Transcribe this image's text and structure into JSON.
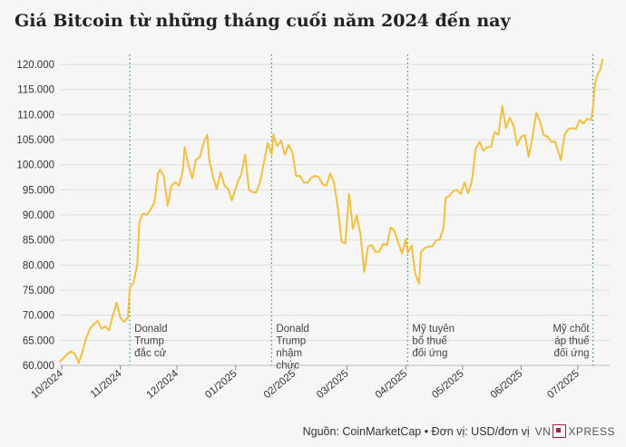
{
  "title": "Giá Bitcoin từ những tháng cuối năm 2024 đến nay",
  "source": "Nguồn: CoinMarketCap • Đơn vị: USD/đơn vị",
  "logo": {
    "left": "VN",
    "right": "XPRESS"
  },
  "colors": {
    "line": "#f2bf3f",
    "event": "#3f9a57",
    "grid": "#dcdcdc",
    "text": "#333333"
  },
  "chart_data": {
    "type": "line",
    "title": "Giá Bitcoin từ những tháng cuối năm 2024 đến nay",
    "ylim": [
      60000,
      122000
    ],
    "yticks": [
      {
        "v": 60000,
        "label": "60.000"
      },
      {
        "v": 65000,
        "label": "65.000"
      },
      {
        "v": 70000,
        "label": "70.000"
      },
      {
        "v": 75000,
        "label": "75.000"
      },
      {
        "v": 80000,
        "label": "80.000"
      },
      {
        "v": 85000,
        "label": "85.000"
      },
      {
        "v": 90000,
        "label": "90.000"
      },
      {
        "v": 95000,
        "label": "95.000"
      },
      {
        "v": 100000,
        "label": "100.000"
      },
      {
        "v": 105000,
        "label": "105.000"
      },
      {
        "v": 110000,
        "label": "110.000"
      },
      {
        "v": 115000,
        "label": "115.000"
      },
      {
        "v": 120000,
        "label": "120.000"
      }
    ],
    "xticks": [
      {
        "date": "2024-10-01",
        "label": "10/2024"
      },
      {
        "date": "2024-11-01",
        "label": "11/2024"
      },
      {
        "date": "2024-12-01",
        "label": "12/2024"
      },
      {
        "date": "2025-01-01",
        "label": "01/2025"
      },
      {
        "date": "2025-02-01",
        "label": "02/2025"
      },
      {
        "date": "2025-03-01",
        "label": "03/2025"
      },
      {
        "date": "2025-04-01",
        "label": "04/2025"
      },
      {
        "date": "2025-05-01",
        "label": "05/2025"
      },
      {
        "date": "2025-06-01",
        "label": "06/2025"
      },
      {
        "date": "2025-07-01",
        "label": "07/2025"
      }
    ],
    "events": [
      {
        "date": "2024-11-06",
        "lines": [
          "Donald",
          "Trump",
          "đắc cử"
        ]
      },
      {
        "date": "2025-01-20",
        "lines": [
          "Donald",
          "Trump",
          "nhậm",
          "chức"
        ]
      },
      {
        "date": "2025-04-02",
        "lines": [
          "Mỹ tuyên",
          "bố thuế",
          "đối ứng"
        ]
      },
      {
        "date": "2025-07-09",
        "lines": [
          "Mỹ chốt",
          "áp thuế",
          "đối ứng"
        ]
      }
    ],
    "series": [
      {
        "points": [
          [
            "2024-09-30",
            60800
          ],
          [
            "2024-10-02",
            61500
          ],
          [
            "2024-10-04",
            62300
          ],
          [
            "2024-10-06",
            62800
          ],
          [
            "2024-10-08",
            62200
          ],
          [
            "2024-10-10",
            60500
          ],
          [
            "2024-10-12",
            62800
          ],
          [
            "2024-10-14",
            65500
          ],
          [
            "2024-10-16",
            67400
          ],
          [
            "2024-10-18",
            68200
          ],
          [
            "2024-10-20",
            68900
          ],
          [
            "2024-10-22",
            67300
          ],
          [
            "2024-10-24",
            67800
          ],
          [
            "2024-10-26",
            67000
          ],
          [
            "2024-10-28",
            69900
          ],
          [
            "2024-10-30",
            72500
          ],
          [
            "2024-11-01",
            69500
          ],
          [
            "2024-11-03",
            68700
          ],
          [
            "2024-11-05",
            69500
          ],
          [
            "2024-11-06",
            75500
          ],
          [
            "2024-11-08",
            76500
          ],
          [
            "2024-11-10",
            80300
          ],
          [
            "2024-11-11",
            88500
          ],
          [
            "2024-11-13",
            90300
          ],
          [
            "2024-11-15",
            90000
          ],
          [
            "2024-11-17",
            91000
          ],
          [
            "2024-11-19",
            92500
          ],
          [
            "2024-11-21",
            98300
          ],
          [
            "2024-11-22",
            99000
          ],
          [
            "2024-11-24",
            97700
          ],
          [
            "2024-11-26",
            91800
          ],
          [
            "2024-11-28",
            95800
          ],
          [
            "2024-11-30",
            96500
          ],
          [
            "2024-12-02",
            95800
          ],
          [
            "2024-12-04",
            98700
          ],
          [
            "2024-12-05",
            103500
          ],
          [
            "2024-12-07",
            99900
          ],
          [
            "2024-12-09",
            97300
          ],
          [
            "2024-12-11",
            101000
          ],
          [
            "2024-12-13",
            101500
          ],
          [
            "2024-12-15",
            104300
          ],
          [
            "2024-12-17",
            106000
          ],
          [
            "2024-12-18",
            101000
          ],
          [
            "2024-12-20",
            97500
          ],
          [
            "2024-12-22",
            95200
          ],
          [
            "2024-12-24",
            98500
          ],
          [
            "2024-12-26",
            95900
          ],
          [
            "2024-12-28",
            95200
          ],
          [
            "2024-12-30",
            92900
          ],
          [
            "2025-01-02",
            96500
          ],
          [
            "2025-01-04",
            98100
          ],
          [
            "2025-01-06",
            102000
          ],
          [
            "2025-01-08",
            95000
          ],
          [
            "2025-01-10",
            94500
          ],
          [
            "2025-01-12",
            94500
          ],
          [
            "2025-01-14",
            96800
          ],
          [
            "2025-01-16",
            100500
          ],
          [
            "2025-01-18",
            104400
          ],
          [
            "2025-01-20",
            102000
          ],
          [
            "2025-01-21",
            106000
          ],
          [
            "2025-01-23",
            103700
          ],
          [
            "2025-01-25",
            104800
          ],
          [
            "2025-01-27",
            102000
          ],
          [
            "2025-01-29",
            104000
          ],
          [
            "2025-01-31",
            102400
          ],
          [
            "2025-02-02",
            97700
          ],
          [
            "2025-02-04",
            97800
          ],
          [
            "2025-02-06",
            96500
          ],
          [
            "2025-02-08",
            96400
          ],
          [
            "2025-02-10",
            97400
          ],
          [
            "2025-02-12",
            97800
          ],
          [
            "2025-02-14",
            97500
          ],
          [
            "2025-02-16",
            96100
          ],
          [
            "2025-02-18",
            95800
          ],
          [
            "2025-02-20",
            98300
          ],
          [
            "2025-02-22",
            96500
          ],
          [
            "2025-02-24",
            91500
          ],
          [
            "2025-02-26",
            84700
          ],
          [
            "2025-02-28",
            84300
          ],
          [
            "2025-03-02",
            94200
          ],
          [
            "2025-03-04",
            87200
          ],
          [
            "2025-03-06",
            89900
          ],
          [
            "2025-03-08",
            86200
          ],
          [
            "2025-03-10",
            78600
          ],
          [
            "2025-03-12",
            83700
          ],
          [
            "2025-03-14",
            84000
          ],
          [
            "2025-03-16",
            82600
          ],
          [
            "2025-03-18",
            82700
          ],
          [
            "2025-03-20",
            84200
          ],
          [
            "2025-03-22",
            84000
          ],
          [
            "2025-03-24",
            87500
          ],
          [
            "2025-03-26",
            86900
          ],
          [
            "2025-03-28",
            84400
          ],
          [
            "2025-03-30",
            82300
          ],
          [
            "2025-04-01",
            85200
          ],
          [
            "2025-04-02",
            82500
          ],
          [
            "2025-04-04",
            83900
          ],
          [
            "2025-04-06",
            78300
          ],
          [
            "2025-04-08",
            76300
          ],
          [
            "2025-04-09",
            82600
          ],
          [
            "2025-04-11",
            83400
          ],
          [
            "2025-04-13",
            83700
          ],
          [
            "2025-04-15",
            83700
          ],
          [
            "2025-04-17",
            84900
          ],
          [
            "2025-04-19",
            85100
          ],
          [
            "2025-04-21",
            87500
          ],
          [
            "2025-04-22",
            93400
          ],
          [
            "2025-04-24",
            93800
          ],
          [
            "2025-04-26",
            94700
          ],
          [
            "2025-04-28",
            95000
          ],
          [
            "2025-04-30",
            94200
          ],
          [
            "2025-05-02",
            96500
          ],
          [
            "2025-05-04",
            94300
          ],
          [
            "2025-05-06",
            96800
          ],
          [
            "2025-05-08",
            103200
          ],
          [
            "2025-05-10",
            104600
          ],
          [
            "2025-05-12",
            102800
          ],
          [
            "2025-05-14",
            103500
          ],
          [
            "2025-05-16",
            103500
          ],
          [
            "2025-05-18",
            106500
          ],
          [
            "2025-05-20",
            106000
          ],
          [
            "2025-05-22",
            111700
          ],
          [
            "2025-05-24",
            107300
          ],
          [
            "2025-05-26",
            109400
          ],
          [
            "2025-05-28",
            107800
          ],
          [
            "2025-05-30",
            103900
          ],
          [
            "2025-06-01",
            105600
          ],
          [
            "2025-06-03",
            105900
          ],
          [
            "2025-06-05",
            101600
          ],
          [
            "2025-06-07",
            105500
          ],
          [
            "2025-06-09",
            110300
          ],
          [
            "2025-06-11",
            108600
          ],
          [
            "2025-06-13",
            105900
          ],
          [
            "2025-06-15",
            105600
          ],
          [
            "2025-06-17",
            104600
          ],
          [
            "2025-06-19",
            104600
          ],
          [
            "2025-06-21",
            102200
          ],
          [
            "2025-06-22",
            100900
          ],
          [
            "2025-06-24",
            106000
          ],
          [
            "2025-06-26",
            107100
          ],
          [
            "2025-06-28",
            107300
          ],
          [
            "2025-06-30",
            107100
          ],
          [
            "2025-07-02",
            108900
          ],
          [
            "2025-07-04",
            108200
          ],
          [
            "2025-07-06",
            109200
          ],
          [
            "2025-07-08",
            108900
          ],
          [
            "2025-07-09",
            111300
          ],
          [
            "2025-07-10",
            116000
          ],
          [
            "2025-07-11",
            117500
          ],
          [
            "2025-07-13",
            119100
          ],
          [
            "2025-07-14",
            121000
          ]
        ]
      }
    ]
  }
}
